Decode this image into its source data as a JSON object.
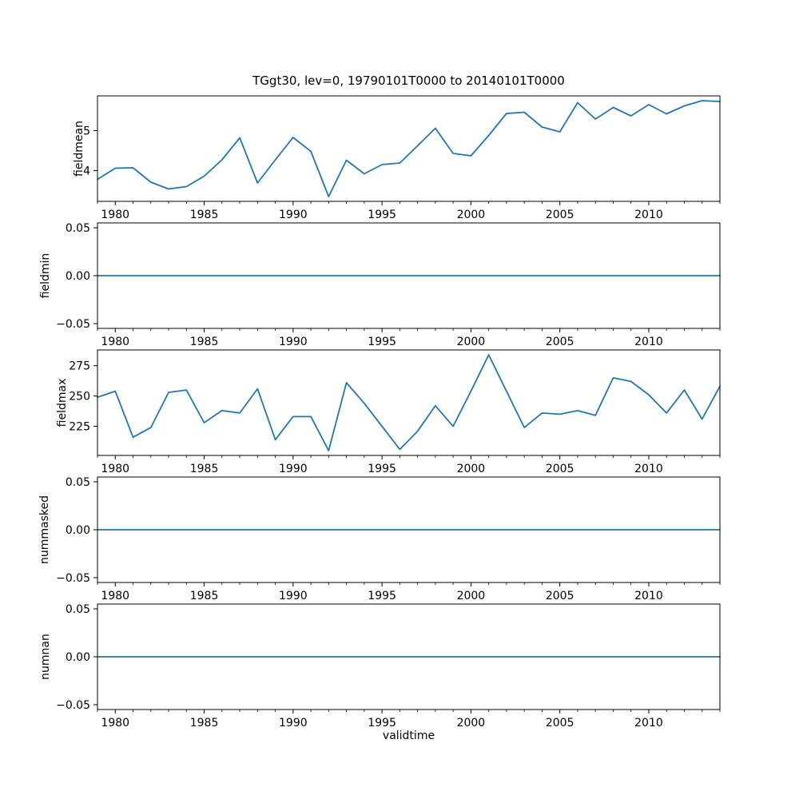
{
  "title": "TGgt30, lev=0, 19790101T0000 to 20140101T0000",
  "xlabel": "validtime",
  "line_color": "#1f77b4",
  "chart_data": [
    {
      "type": "line",
      "ylabel": "fieldmean",
      "x": [
        1979,
        1980,
        1981,
        1982,
        1983,
        1984,
        1985,
        1986,
        1987,
        1988,
        1989,
        1990,
        1991,
        1992,
        1993,
        1994,
        1995,
        1996,
        1997,
        1998,
        1999,
        2000,
        2001,
        2002,
        2003,
        2004,
        2005,
        2006,
        2007,
        2008,
        2009,
        2010,
        2011,
        2012,
        2013,
        2014
      ],
      "values": [
        3.78,
        4.06,
        4.07,
        3.71,
        3.54,
        3.6,
        3.86,
        4.27,
        4.82,
        3.69,
        4.27,
        4.83,
        4.48,
        3.35,
        4.26,
        3.92,
        4.15,
        4.19,
        4.62,
        5.06,
        4.43,
        4.37,
        4.88,
        5.43,
        5.46,
        5.09,
        4.97,
        5.7,
        5.29,
        5.58,
        5.37,
        5.65,
        5.42,
        5.62,
        5.75,
        5.73
      ],
      "xlim": [
        1979,
        2014
      ],
      "ylim": [
        3.23,
        5.87
      ],
      "xticks": [
        1980,
        1985,
        1990,
        1995,
        2000,
        2005,
        2010
      ],
      "yticks": [
        4,
        5
      ],
      "yticklabels": [
        "4",
        "5"
      ],
      "grid": false
    },
    {
      "type": "line",
      "ylabel": "fieldmin",
      "x": [
        1979,
        1980,
        1981,
        1982,
        1983,
        1984,
        1985,
        1986,
        1987,
        1988,
        1989,
        1990,
        1991,
        1992,
        1993,
        1994,
        1995,
        1996,
        1997,
        1998,
        1999,
        2000,
        2001,
        2002,
        2003,
        2004,
        2005,
        2006,
        2007,
        2008,
        2009,
        2010,
        2011,
        2012,
        2013,
        2014
      ],
      "values": [
        0,
        0,
        0,
        0,
        0,
        0,
        0,
        0,
        0,
        0,
        0,
        0,
        0,
        0,
        0,
        0,
        0,
        0,
        0,
        0,
        0,
        0,
        0,
        0,
        0,
        0,
        0,
        0,
        0,
        0,
        0,
        0,
        0,
        0,
        0,
        0
      ],
      "xlim": [
        1979,
        2014
      ],
      "ylim": [
        -0.055,
        0.055
      ],
      "xticks": [
        1980,
        1985,
        1990,
        1995,
        2000,
        2005,
        2010
      ],
      "yticks": [
        -0.05,
        0,
        0.05
      ],
      "yticklabels": [
        "−0.05",
        "0.00",
        "0.05"
      ],
      "grid": false
    },
    {
      "type": "line",
      "ylabel": "fieldmax",
      "x": [
        1979,
        1980,
        1981,
        1982,
        1983,
        1984,
        1985,
        1986,
        1987,
        1988,
        1989,
        1990,
        1991,
        1992,
        1993,
        1994,
        1995,
        1996,
        1997,
        1998,
        1999,
        2000,
        2001,
        2002,
        2003,
        2004,
        2005,
        2006,
        2007,
        2008,
        2009,
        2010,
        2011,
        2012,
        2013,
        2014
      ],
      "values": [
        249,
        254,
        216,
        224,
        253,
        255,
        228,
        238,
        236,
        256,
        214,
        233,
        233,
        205,
        261,
        244,
        225,
        206,
        221,
        242,
        225,
        254,
        284,
        254,
        224,
        236,
        235,
        238,
        234,
        265,
        262,
        251,
        236,
        255,
        231,
        258
      ],
      "xlim": [
        1979,
        2014
      ],
      "ylim": [
        201,
        288
      ],
      "xticks": [
        1980,
        1985,
        1990,
        1995,
        2000,
        2005,
        2010
      ],
      "yticks": [
        225,
        250,
        275
      ],
      "yticklabels": [
        "225",
        "250",
        "275"
      ],
      "grid": false
    },
    {
      "type": "line",
      "ylabel": "nummasked",
      "x": [
        1979,
        1980,
        1981,
        1982,
        1983,
        1984,
        1985,
        1986,
        1987,
        1988,
        1989,
        1990,
        1991,
        1992,
        1993,
        1994,
        1995,
        1996,
        1997,
        1998,
        1999,
        2000,
        2001,
        2002,
        2003,
        2004,
        2005,
        2006,
        2007,
        2008,
        2009,
        2010,
        2011,
        2012,
        2013,
        2014
      ],
      "values": [
        0,
        0,
        0,
        0,
        0,
        0,
        0,
        0,
        0,
        0,
        0,
        0,
        0,
        0,
        0,
        0,
        0,
        0,
        0,
        0,
        0,
        0,
        0,
        0,
        0,
        0,
        0,
        0,
        0,
        0,
        0,
        0,
        0,
        0,
        0,
        0
      ],
      "xlim": [
        1979,
        2014
      ],
      "ylim": [
        -0.055,
        0.055
      ],
      "xticks": [
        1980,
        1985,
        1990,
        1995,
        2000,
        2005,
        2010
      ],
      "yticks": [
        -0.05,
        0,
        0.05
      ],
      "yticklabels": [
        "−0.05",
        "0.00",
        "0.05"
      ],
      "grid": false
    },
    {
      "type": "line",
      "ylabel": "numnan",
      "x": [
        1979,
        1980,
        1981,
        1982,
        1983,
        1984,
        1985,
        1986,
        1987,
        1988,
        1989,
        1990,
        1991,
        1992,
        1993,
        1994,
        1995,
        1996,
        1997,
        1998,
        1999,
        2000,
        2001,
        2002,
        2003,
        2004,
        2005,
        2006,
        2007,
        2008,
        2009,
        2010,
        2011,
        2012,
        2013,
        2014
      ],
      "values": [
        0,
        0,
        0,
        0,
        0,
        0,
        0,
        0,
        0,
        0,
        0,
        0,
        0,
        0,
        0,
        0,
        0,
        0,
        0,
        0,
        0,
        0,
        0,
        0,
        0,
        0,
        0,
        0,
        0,
        0,
        0,
        0,
        0,
        0,
        0,
        0
      ],
      "xlim": [
        1979,
        2014
      ],
      "ylim": [
        -0.055,
        0.055
      ],
      "xticks": [
        1980,
        1985,
        1990,
        1995,
        2000,
        2005,
        2010
      ],
      "yticks": [
        -0.05,
        0,
        0.05
      ],
      "yticklabels": [
        "−0.05",
        "0.00",
        "0.05"
      ],
      "grid": false
    }
  ]
}
